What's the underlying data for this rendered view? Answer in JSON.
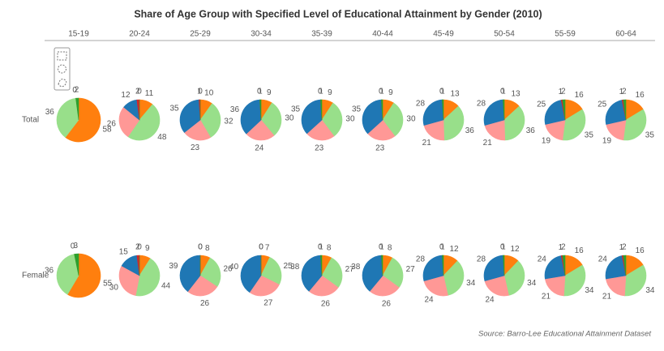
{
  "chart_data": {
    "type": "pie",
    "title": "Share of Age Group with Specified Level of Educational Attainment by Gender (2010)",
    "source": "Source: Barro-Lee Educational Attainment Dataset",
    "categories": [
      "15-19",
      "20-24",
      "25-29",
      "30-34",
      "35-39",
      "40-44",
      "45-49",
      "50-54",
      "55-59",
      "60-64"
    ],
    "slice_colors": [
      "#ff7f0e",
      "#98df8a",
      "#ff9896",
      "#1f77b4",
      "#d62728",
      "#2ca02c"
    ],
    "series": [
      {
        "name": "Total",
        "values": [
          [
            58,
            36,
            0,
            null,
            null,
            2
          ],
          [
            11,
            48,
            26,
            12,
            2,
            0
          ],
          [
            10,
            32,
            23,
            35,
            1,
            0
          ],
          [
            9,
            30,
            24,
            36,
            0,
            1
          ],
          [
            9,
            30,
            23,
            35,
            0,
            1
          ],
          [
            9,
            30,
            23,
            35,
            0,
            1
          ],
          [
            13,
            36,
            21,
            28,
            0,
            1
          ],
          [
            13,
            36,
            21,
            28,
            0,
            1
          ],
          [
            16,
            35,
            19,
            25,
            1,
            2
          ],
          [
            16,
            35,
            19,
            25,
            1,
            2
          ]
        ]
      },
      {
        "name": "Female",
        "values": [
          [
            55,
            36,
            0,
            null,
            null,
            3
          ],
          [
            9,
            44,
            30,
            15,
            2,
            0
          ],
          [
            8,
            26,
            26,
            39,
            0,
            0
          ],
          [
            7,
            25,
            27,
            40,
            0,
            0
          ],
          [
            8,
            27,
            26,
            38,
            0,
            1
          ],
          [
            8,
            27,
            26,
            38,
            0,
            1
          ],
          [
            12,
            34,
            24,
            28,
            0,
            1
          ],
          [
            12,
            34,
            24,
            28,
            0,
            1
          ],
          [
            16,
            34,
            21,
            24,
            1,
            2
          ],
          [
            16,
            34,
            21,
            24,
            1,
            2
          ]
        ]
      }
    ]
  }
}
